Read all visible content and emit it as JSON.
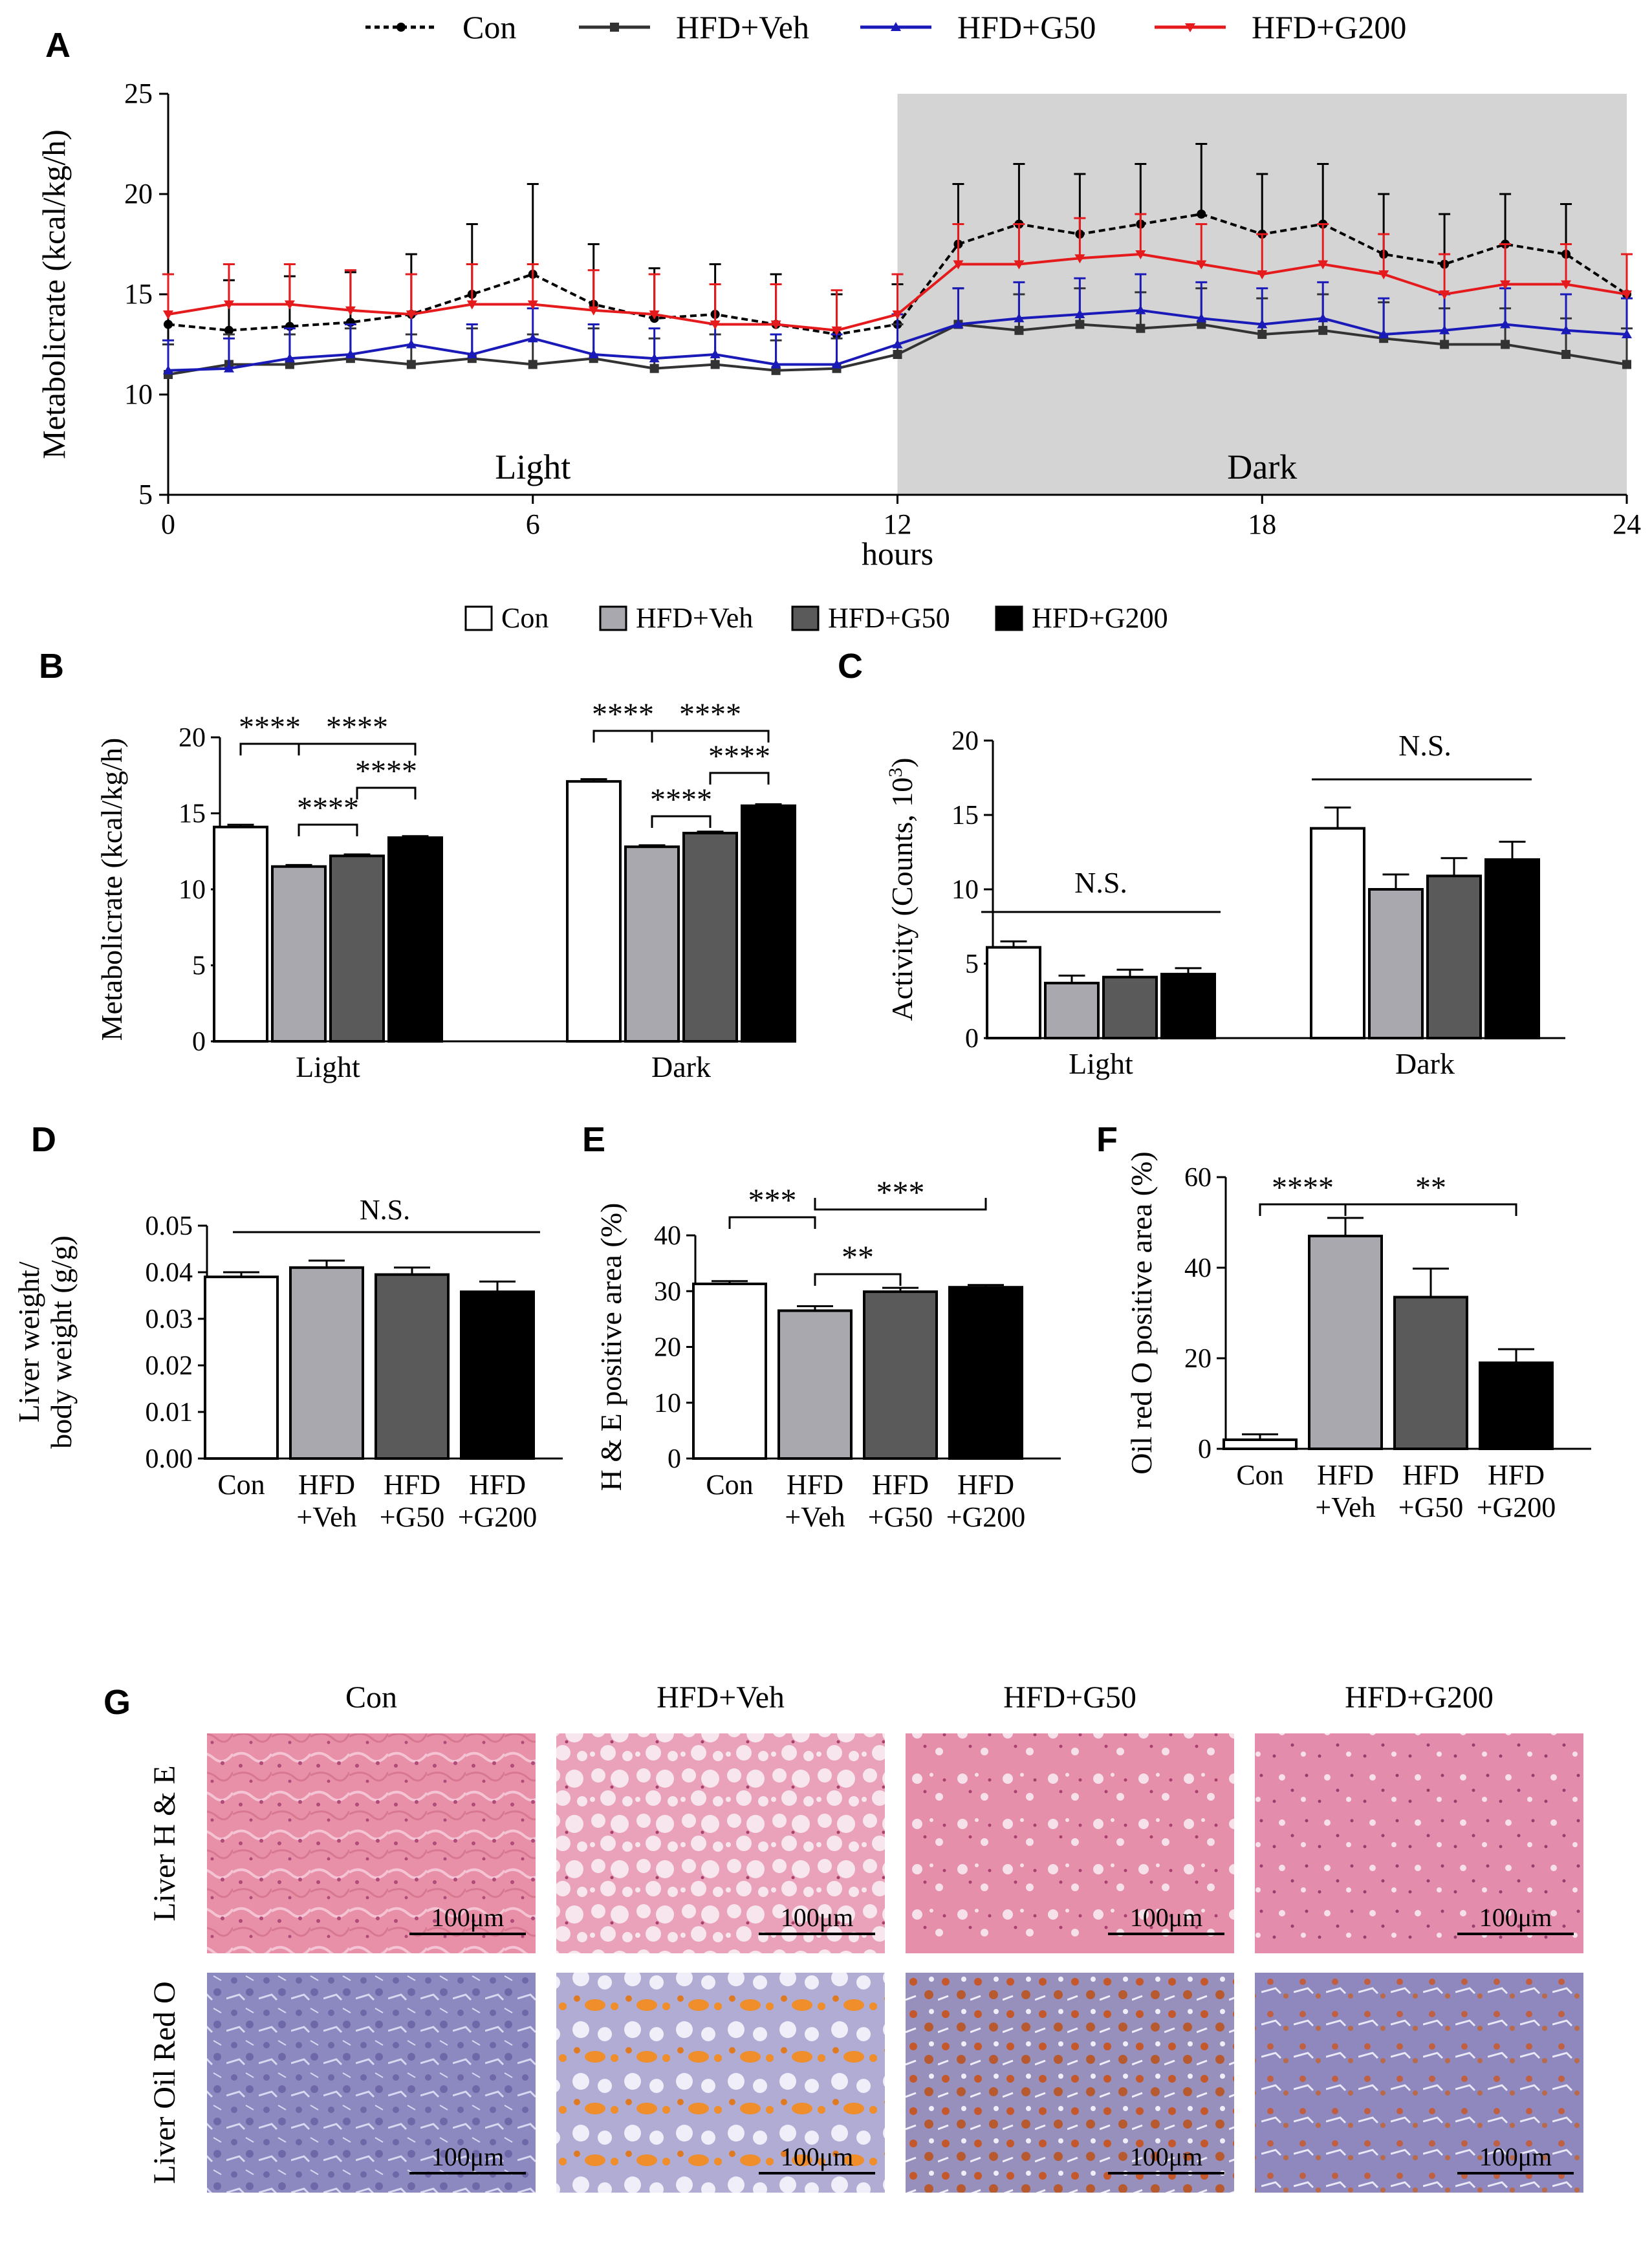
{
  "figure": {
    "panel_labels": [
      "A",
      "B",
      "C",
      "D",
      "E",
      "F",
      "G"
    ],
    "groups": [
      "Con",
      "HFD+Veh",
      "HFD+G50",
      "HFD+G200"
    ],
    "group_labels_2line": [
      [
        "Con"
      ],
      [
        "HFD",
        "+Veh"
      ],
      [
        "HFD",
        "+G50"
      ],
      [
        "HFD",
        "+G200"
      ]
    ],
    "colors": {
      "con": "#000000",
      "veh": "#333333",
      "g50": "#1a1ab8",
      "g200": "#e41a1c",
      "bar_con": "#ffffff",
      "bar_veh": "#a8a8ae",
      "bar_g50": "#5a5a5a",
      "bar_g200": "#000000",
      "dark_shade": "#d4d4d4"
    }
  },
  "chart_data": [
    {
      "panel": "A",
      "type": "line",
      "xlabel": "hours",
      "ylabel": "Metabolicrate (kcal/kg/h)",
      "xlim": [
        0,
        24
      ],
      "ylim": [
        5,
        25
      ],
      "xticks": [
        0,
        6,
        12,
        18,
        24
      ],
      "yticks": [
        5,
        10,
        15,
        20,
        25
      ],
      "annotations": [
        "Light",
        "Dark"
      ],
      "dark_period": [
        12,
        24
      ],
      "legend": [
        "Con",
        "HFD+Veh",
        "HFD+G50",
        "HFD+G200"
      ],
      "x": [
        0,
        1,
        2,
        3,
        4,
        5,
        6,
        7,
        8,
        9,
        10,
        11,
        12,
        13,
        14,
        15,
        16,
        17,
        18,
        19,
        20,
        21,
        22,
        23,
        24
      ],
      "series": [
        {
          "name": "Con",
          "values": [
            13.5,
            13.2,
            13.4,
            13.6,
            14.0,
            15.0,
            16.0,
            14.5,
            13.8,
            14.0,
            13.5,
            13.0,
            13.5,
            17.5,
            18.5,
            18.0,
            18.5,
            19.0,
            18.0,
            18.5,
            17.0,
            16.5,
            17.5,
            17.0,
            15.0
          ],
          "error": [
            2.5,
            2.5,
            2.5,
            2.5,
            3.0,
            3.5,
            4.5,
            3.0,
            2.5,
            2.5,
            2.5,
            2.0,
            2.0,
            3.0,
            3.0,
            3.0,
            3.0,
            3.5,
            3.0,
            3.0,
            3.0,
            2.5,
            2.5,
            2.5,
            2.0
          ]
        },
        {
          "name": "HFD+Veh",
          "values": [
            11.0,
            11.5,
            11.5,
            11.8,
            11.5,
            11.8,
            11.5,
            11.8,
            11.3,
            11.5,
            11.2,
            11.3,
            12.0,
            13.5,
            13.2,
            13.5,
            13.3,
            13.5,
            13.0,
            13.2,
            12.8,
            12.5,
            12.5,
            12.0,
            11.5
          ],
          "error": [
            1.5,
            1.5,
            1.5,
            1.5,
            1.5,
            1.5,
            1.5,
            1.5,
            1.5,
            1.5,
            1.5,
            1.5,
            1.5,
            1.8,
            1.8,
            1.8,
            1.8,
            1.8,
            1.8,
            1.8,
            1.8,
            1.8,
            1.8,
            1.8,
            1.8
          ]
        },
        {
          "name": "HFD+G50",
          "values": [
            11.2,
            11.3,
            11.8,
            12.0,
            12.5,
            12.0,
            12.8,
            12.0,
            11.8,
            12.0,
            11.5,
            11.5,
            12.5,
            13.5,
            13.8,
            14.0,
            14.2,
            13.8,
            13.5,
            13.8,
            13.0,
            13.2,
            13.5,
            13.2,
            13.0
          ],
          "error": [
            1.5,
            1.5,
            1.5,
            1.5,
            1.5,
            1.5,
            1.5,
            1.5,
            1.5,
            1.5,
            1.5,
            1.5,
            1.5,
            1.8,
            1.8,
            1.8,
            1.8,
            1.8,
            1.8,
            1.8,
            1.8,
            1.8,
            1.8,
            1.8,
            1.8
          ]
        },
        {
          "name": "HFD+G200",
          "values": [
            14.0,
            14.5,
            14.5,
            14.2,
            14.0,
            14.5,
            14.5,
            14.2,
            14.0,
            13.5,
            13.5,
            13.2,
            14.0,
            16.5,
            16.5,
            16.8,
            17.0,
            16.5,
            16.0,
            16.5,
            16.0,
            15.0,
            15.5,
            15.5,
            15.0
          ],
          "error": [
            2.0,
            2.0,
            2.0,
            2.0,
            2.0,
            2.0,
            2.0,
            2.0,
            2.0,
            2.0,
            2.0,
            2.0,
            2.0,
            2.0,
            2.0,
            2.0,
            2.0,
            2.0,
            2.0,
            2.0,
            2.0,
            2.0,
            2.0,
            2.0,
            2.0
          ]
        }
      ]
    },
    {
      "panel": "B",
      "type": "bar",
      "ylabel": "Metabolicrate (kcal/kg/h)",
      "ylim": [
        0,
        20
      ],
      "yticks": [
        0,
        5,
        10,
        15,
        20
      ],
      "categories": [
        "Light",
        "Dark"
      ],
      "legend": [
        "Con",
        "HFD+Veh",
        "HFD+G50",
        "HFD+G200"
      ],
      "series": [
        {
          "name": "Con",
          "values": [
            14.1,
            17.1
          ],
          "error": [
            0.15,
            0.15
          ]
        },
        {
          "name": "HFD+Veh",
          "values": [
            11.5,
            12.8
          ],
          "error": [
            0.1,
            0.1
          ]
        },
        {
          "name": "HFD+G50",
          "values": [
            12.2,
            13.7
          ],
          "error": [
            0.1,
            0.1
          ]
        },
        {
          "name": "HFD+G200",
          "values": [
            13.4,
            15.5
          ],
          "error": [
            0.1,
            0.1
          ]
        }
      ],
      "significance": [
        {
          "group": "Light",
          "pair": [
            "Con",
            "HFD+Veh"
          ],
          "label": "****"
        },
        {
          "group": "Light",
          "pair": [
            "HFD+Veh",
            "HFD+G200"
          ],
          "label": "****"
        },
        {
          "group": "Light",
          "pair": [
            "HFD+G50",
            "HFD+G200"
          ],
          "label": "****"
        },
        {
          "group": "Light",
          "pair": [
            "HFD+Veh",
            "HFD+G50"
          ],
          "label": "****"
        },
        {
          "group": "Dark",
          "pair": [
            "Con",
            "HFD+Veh"
          ],
          "label": "****"
        },
        {
          "group": "Dark",
          "pair": [
            "HFD+Veh",
            "HFD+G200"
          ],
          "label": "****"
        },
        {
          "group": "Dark",
          "pair": [
            "HFD+G50",
            "HFD+G200"
          ],
          "label": "****"
        },
        {
          "group": "Dark",
          "pair": [
            "HFD+Veh",
            "HFD+G50"
          ],
          "label": "****"
        }
      ]
    },
    {
      "panel": "C",
      "type": "bar",
      "ylabel": "Activity (Counts, 10",
      "ylabel_sup": "3",
      "ylabel_end": ")",
      "ylim": [
        0,
        20
      ],
      "yticks": [
        0,
        5,
        10,
        15,
        20
      ],
      "categories": [
        "Light",
        "Dark"
      ],
      "series": [
        {
          "name": "Con",
          "values": [
            6.1,
            14.1
          ],
          "error": [
            0.4,
            1.4
          ]
        },
        {
          "name": "HFD+Veh",
          "values": [
            3.7,
            10.0
          ],
          "error": [
            0.5,
            1.0
          ]
        },
        {
          "name": "HFD+G50",
          "values": [
            4.1,
            10.9
          ],
          "error": [
            0.5,
            1.2
          ]
        },
        {
          "name": "HFD+G200",
          "values": [
            4.3,
            12.0
          ],
          "error": [
            0.4,
            1.2
          ]
        }
      ],
      "significance": [
        {
          "group": "Light",
          "pair": [
            "Con",
            "HFD+G200"
          ],
          "label": "N.S."
        },
        {
          "group": "Dark",
          "pair": [
            "Con",
            "HFD+G200"
          ],
          "label": "N.S."
        }
      ]
    },
    {
      "panel": "D",
      "type": "bar",
      "ylabel": [
        "Liver weight/",
        "body weight (g/g)"
      ],
      "ylim": [
        0,
        0.05
      ],
      "yticks": [
        "0.00",
        "0.01",
        "0.02",
        "0.03",
        "0.04",
        "0.05"
      ],
      "categories": [
        "Con",
        "HFD+Veh",
        "HFD+G50",
        "HFD+G200"
      ],
      "values": [
        0.039,
        0.041,
        0.0395,
        0.0358
      ],
      "error": [
        0.001,
        0.0015,
        0.0015,
        0.0022
      ],
      "significance": [
        {
          "pair": [
            "Con",
            "HFD+G200"
          ],
          "label": "N.S."
        }
      ]
    },
    {
      "panel": "E",
      "type": "bar",
      "ylabel": "H & E positive area (%)",
      "ylim": [
        0,
        40
      ],
      "yticks": [
        0,
        10,
        20,
        30,
        40
      ],
      "categories": [
        "Con",
        "HFD+Veh",
        "HFD+G50",
        "HFD+G200"
      ],
      "values": [
        31.3,
        26.5,
        29.9,
        30.7
      ],
      "error": [
        0.5,
        0.8,
        0.7,
        0.4
      ],
      "significance": [
        {
          "pair": [
            "Con",
            "HFD+Veh"
          ],
          "label": "***"
        },
        {
          "pair": [
            "HFD+Veh",
            "HFD+G200"
          ],
          "label": "***"
        },
        {
          "pair": [
            "HFD+Veh",
            "HFD+G50"
          ],
          "label": "**"
        }
      ]
    },
    {
      "panel": "F",
      "type": "bar",
      "ylabel": "Oil red O positive area (%)",
      "ylim": [
        0,
        60
      ],
      "yticks": [
        0,
        20,
        40,
        60
      ],
      "categories": [
        "Con",
        "HFD+Veh",
        "HFD+G50",
        "HFD+G200"
      ],
      "values": [
        2.0,
        47.0,
        33.5,
        19.0
      ],
      "error": [
        1.2,
        4.0,
        6.3,
        3.0
      ],
      "significance": [
        {
          "pair": [
            "Con",
            "HFD+Veh"
          ],
          "label": "****"
        },
        {
          "pair": [
            "HFD+Veh",
            "HFD+G200"
          ],
          "label": "**"
        }
      ]
    }
  ],
  "panel_g": {
    "columns": [
      "Con",
      "HFD+Veh",
      "HFD+G50",
      "HFD+G200"
    ],
    "rows": [
      "Liver H & E",
      "Liver Oil Red O"
    ],
    "scale_bar": "100μm"
  }
}
